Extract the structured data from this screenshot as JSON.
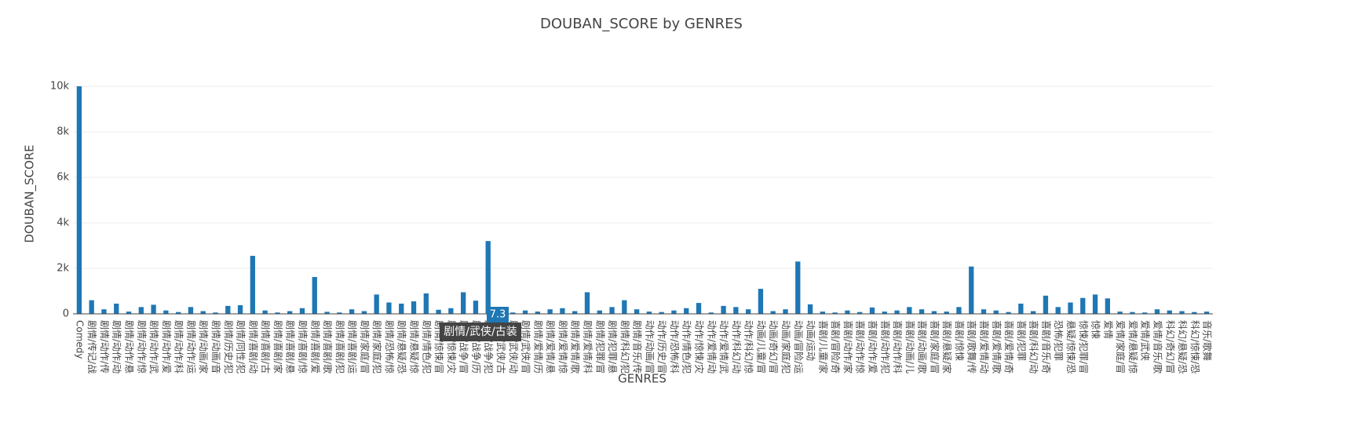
{
  "chart_data": {
    "type": "bar",
    "title": "DOUBAN_SCORE by GENRES",
    "x_label": "GENRES",
    "y_label": "DOUBAN_SCORE",
    "color": "#1f77b4",
    "grid": true,
    "categories": [
      "Comedy",
      "剧情/传记/战",
      "剧情/动作/传",
      "剧情/动作/动",
      "剧情/动作/悬",
      "剧情/动作/惊",
      "剧情/动作/武",
      "剧情/动作/爱",
      "剧情/动作/科",
      "剧情/动作/运",
      "剧情/动画/家",
      "剧情/动画/音",
      "剧情/历史/犯",
      "剧情/同性/犯",
      "剧情/喜剧/动",
      "剧情/喜剧/古",
      "剧情/喜剧/家",
      "剧情/喜剧/悬",
      "剧情/喜剧/惊",
      "剧情/喜剧/爱",
      "剧情/喜剧/歌",
      "剧情/喜剧/犯",
      "剧情/喜剧/运",
      "剧情/家庭/冒",
      "剧情/家庭/犯",
      "剧情/恐怖/惊",
      "剧情/悬疑/恐",
      "剧情/悬疑/惊",
      "剧情/情色/犯",
      "剧情/惊悚/冒",
      "剧情/惊悚/灾",
      "剧情/战争/冒",
      "剧情/战争/历",
      "剧情/战争/犯",
      "剧情/武侠/古",
      "剧情/武侠/动",
      "剧情/武侠/冒",
      "剧情/爱情/历",
      "剧情/爱情/悬",
      "剧情/爱情/惊",
      "剧情/爱情/歌",
      "剧情/爱情/科",
      "剧情/犯罪/冒",
      "剧情/犯罪/悬",
      "剧情/科幻/犯",
      "剧情/音乐/传",
      "动作/动画/冒",
      "动作/历史/冒",
      "动作/恐怖/科",
      "动作/情色/犯",
      "动作/惊悚/灾",
      "动作/爱情/动",
      "动作/爱情/武",
      "动作/科幻/动",
      "动作/科幻/惊",
      "动画/儿童/冒",
      "动画/奇幻/冒",
      "动画/家庭/犯",
      "动画/冒险/运",
      "动画/运动",
      "喜剧/儿童/家",
      "喜剧/冒险/奇",
      "喜剧/动作/家",
      "喜剧/动作/惊",
      "喜剧/动作/爱",
      "喜剧/动作/犯",
      "喜剧/动作/科",
      "喜剧/动画/儿",
      "喜剧/动画/歌",
      "喜剧/家庭/冒",
      "喜剧/悬疑/家",
      "喜剧/惊悚",
      "喜剧/歌舞/传",
      "喜剧/爱情/动",
      "喜剧/爱情/歌",
      "喜剧/爱情/奇",
      "喜剧/犯罪",
      "喜剧/科幻/动",
      "喜剧/音乐/奇",
      "恐怖/犯罪",
      "悬疑/惊悚/恐",
      "惊悚/犯罪/冒",
      "惊悚",
      "爱情",
      "爱情/家庭/冒",
      "爱情/悬疑/惊",
      "爱情/武侠",
      "爱情/音乐/歌",
      "科幻/奇幻/冒",
      "科幻/悬疑/恐",
      "科幻/惊悚/恐",
      "音乐/歌舞"
    ],
    "values": [
      10000,
      600,
      200,
      450,
      100,
      300,
      400,
      150,
      80,
      300,
      120,
      60,
      350,
      380,
      2550,
      150,
      60,
      120,
      250,
      1620,
      90,
      60,
      200,
      120,
      850,
      500,
      450,
      550,
      900,
      180,
      250,
      950,
      580,
      3200,
      7.3,
      60,
      150,
      100,
      200,
      250,
      120,
      950,
      150,
      300,
      600,
      200,
      100,
      80,
      150,
      250,
      480,
      60,
      350,
      300,
      200,
      1100,
      120,
      200,
      2300,
      420,
      100,
      60,
      150,
      80,
      280,
      100,
      150,
      300,
      200,
      120,
      100,
      300,
      2080,
      200,
      150,
      80,
      450,
      120,
      800,
      300,
      500,
      700,
      850,
      680,
      100,
      80,
      60,
      200,
      150,
      120,
      80,
      100
    ],
    "ylim": [
      0,
      10000
    ],
    "yticks": [
      0,
      {
        "value": 2000,
        "label": "2k"
      },
      {
        "value": 4000,
        "label": "4k"
      },
      {
        "value": 6000,
        "label": "6k"
      },
      {
        "value": 8000,
        "label": "8k"
      },
      {
        "value": 10000,
        "label": "10k"
      }
    ],
    "hover": {
      "label": "剧情/武侠/古装",
      "value": 7.3
    }
  }
}
